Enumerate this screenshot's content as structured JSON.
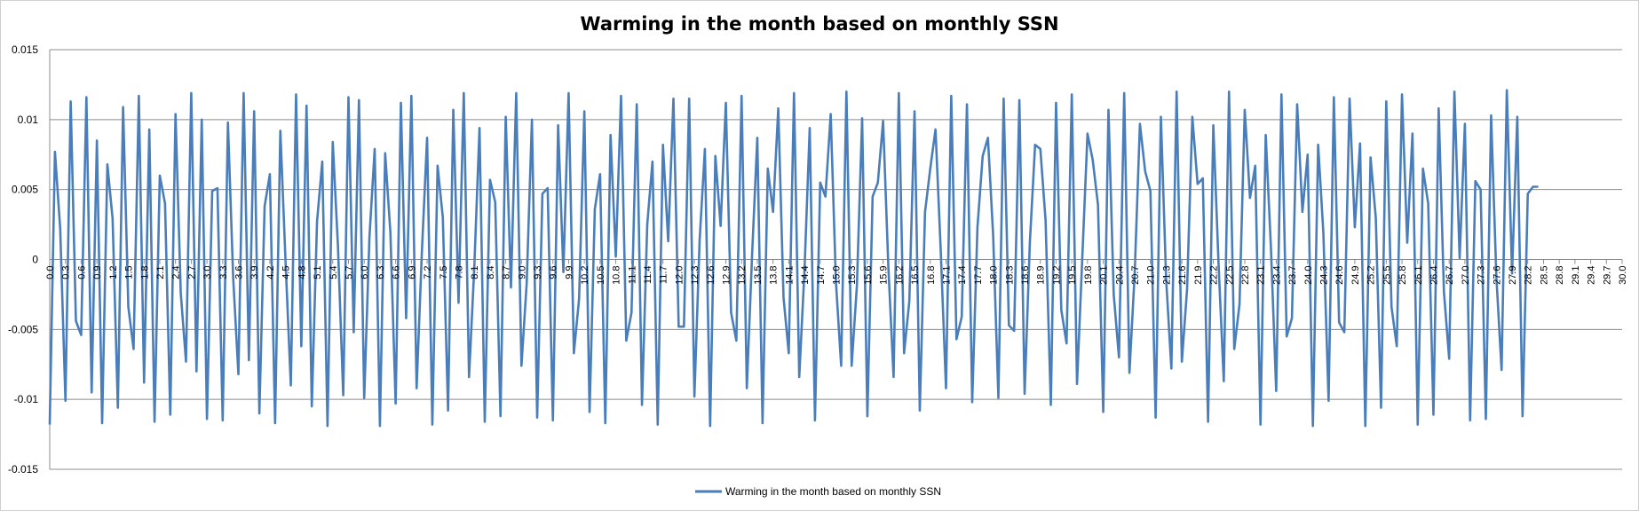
{
  "chart_data": {
    "type": "line",
    "title": "Warming in the month based on monthly SSN",
    "xlabel": "",
    "ylabel": "",
    "ylim": [
      -0.015,
      0.015
    ],
    "y_ticks": [
      "0.015",
      "0.01",
      "0.005",
      "0",
      "-0.005",
      "-0.01",
      "-0.015"
    ],
    "y_tick_values": [
      0.015,
      0.01,
      0.005,
      0,
      -0.005,
      -0.01,
      -0.015
    ],
    "x_range": [
      0,
      30
    ],
    "x_tick_step": 0.3,
    "grid": true,
    "legend_position": "bottom-center",
    "series": [
      {
        "name": "Warming in the month based on monthly SSN",
        "color": "#4a7ebb",
        "x_step": 0.1,
        "values": [
          -0.0118,
          0.0077,
          0.0022,
          -0.0101,
          0.0113,
          -0.0044,
          -0.0054,
          0.0116,
          -0.0095,
          0.0085,
          -0.0117,
          0.0068,
          0.0029,
          -0.0106,
          0.0109,
          -0.0034,
          -0.0064,
          0.0117,
          -0.0088,
          0.0093,
          -0.0116,
          0.006,
          0.004,
          -0.0111,
          0.0104,
          -0.0024,
          -0.0073,
          0.0119,
          -0.008,
          0.01,
          -0.0114,
          0.0049,
          0.0051,
          -0.0115,
          0.0098,
          -0.0013,
          -0.0082,
          0.0119,
          -0.0072,
          0.0106,
          -0.011,
          0.0038,
          0.0061,
          -0.0117,
          0.0092,
          -0.0002,
          -0.009,
          0.0118,
          -0.0062,
          0.011,
          -0.0105,
          0.0027,
          0.007,
          -0.0119,
          0.0084,
          0.0009,
          -0.0097,
          0.0116,
          -0.0052,
          0.0114,
          -0.0099,
          0.0016,
          0.0079,
          -0.0119,
          0.0076,
          0.0019,
          -0.0103,
          0.0112,
          -0.0042,
          0.0117,
          -0.0092,
          0.0005,
          0.0087,
          -0.0118,
          0.0067,
          0.003,
          -0.0108,
          0.0107,
          -0.0031,
          0.0119,
          -0.0084,
          -0.0006,
          0.0094,
          -0.0116,
          0.0057,
          0.0041,
          -0.0112,
          0.0102,
          -0.002,
          0.0119,
          -0.0076,
          -0.0017,
          0.01,
          -0.0113,
          0.0047,
          0.0051,
          -0.0115,
          0.0096,
          -0.0009,
          0.0119,
          -0.0067,
          -0.0028,
          0.0106,
          -0.0109,
          0.0036,
          0.0061,
          -0.0117,
          0.0089,
          0.0002,
          0.0117,
          -0.0058,
          -0.0038,
          0.0111,
          -0.0104,
          0.0025,
          0.007,
          -0.0118,
          0.0082,
          0.0013,
          0.0115,
          -0.0048,
          -0.0048,
          0.0115,
          -0.0098,
          0.0014,
          0.0079,
          -0.0119,
          0.0074,
          0.0024,
          0.0112,
          -0.0038,
          -0.0058,
          0.0117,
          -0.0092,
          0.0003,
          0.0087,
          -0.0117,
          0.0065,
          0.0034,
          0.0108,
          -0.0027,
          -0.0067,
          0.0119,
          -0.0084,
          -0.0008,
          0.0094,
          -0.0115,
          0.0055,
          0.0045,
          0.0104,
          -0.0016,
          -0.0076,
          0.012,
          -0.0076,
          -0.0019,
          0.0101,
          -0.0112,
          0.0045,
          0.0055,
          0.0099,
          -0.0005,
          -0.0084,
          0.0119,
          -0.0067,
          -0.003,
          0.0106,
          -0.0108,
          0.0034,
          0.0065,
          0.0093,
          0.0006,
          -0.0092,
          0.0117,
          -0.0057,
          -0.0041,
          0.0111,
          -0.0102,
          0.0023,
          0.0074,
          0.0087,
          0.0017,
          -0.0099,
          0.0115,
          -0.0047,
          -0.0051,
          0.0114,
          -0.0096,
          0.0012,
          0.0082,
          0.0079,
          0.0028,
          -0.0104,
          0.0112,
          -0.0036,
          -0.006,
          0.0118,
          -0.0089,
          0.0001,
          0.009,
          0.0071,
          0.0039,
          -0.0109,
          0.0107,
          -0.0025,
          -0.007,
          0.0119,
          -0.0081,
          -0.001,
          0.0097,
          0.0063,
          0.0049,
          -0.0113,
          0.0102,
          -0.0014,
          -0.0078,
          0.012,
          -0.0073,
          -0.0021,
          0.0102,
          0.0054,
          0.0058,
          -0.0116,
          0.0096,
          -0.0003,
          -0.0087,
          0.012,
          -0.0064,
          -0.0032,
          0.0107,
          0.0044,
          0.0067,
          -0.0118,
          0.0089,
          0.0008,
          -0.0094,
          0.0118,
          -0.0055,
          -0.0042,
          0.0111,
          0.0034,
          0.0075,
          -0.0119,
          0.0082,
          0.0019,
          -0.0101,
          0.0116,
          -0.0045,
          -0.0052,
          0.0115,
          0.0023,
          0.0083,
          -0.0119,
          0.0073,
          0.003,
          -0.0106,
          0.0113,
          -0.0034,
          -0.0062,
          0.0118,
          0.0012,
          0.009,
          -0.0118,
          0.0065,
          0.004,
          -0.0111,
          0.0108,
          -0.0023,
          -0.0071,
          0.012,
          0.0001,
          0.0097,
          -0.0115,
          0.0056,
          0.005,
          -0.0114,
          0.0103,
          -0.0012,
          -0.0079,
          0.0121,
          -0.001,
          0.0102,
          -0.0112,
          0.0047,
          0.0052,
          0.0052
        ]
      }
    ]
  }
}
